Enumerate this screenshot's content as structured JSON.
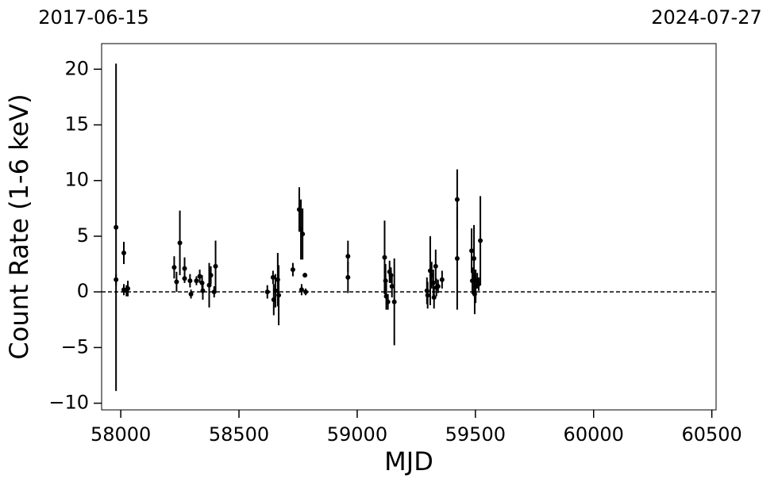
{
  "chart_data": {
    "type": "errorbar",
    "xlabel": "MJD",
    "ylabel": "Count Rate (1-6 keV)",
    "top_left_label": "2017-06-15",
    "top_right_label": "2024-07-27",
    "color": "#000000",
    "xlim": [
      57919,
      60518
    ],
    "ylim": [
      -10.6,
      22.3
    ],
    "xticks": [
      58000,
      58500,
      59000,
      59500,
      60000,
      60500
    ],
    "yticks": [
      {
        "value": -10,
        "label": "−10"
      },
      {
        "value": -5,
        "label": "−5"
      },
      0,
      5,
      10,
      15,
      20
    ],
    "reference_line": 0,
    "x": [
      57980,
      57980,
      58013,
      58013,
      58024,
      58030,
      58226,
      58236,
      58250,
      58270,
      58270,
      58293,
      58297,
      58320,
      58334,
      58344,
      58347,
      58374,
      58381,
      58395,
      58401,
      58620,
      58644,
      58647,
      58654,
      58664,
      58668,
      58728,
      58755,
      58762,
      58769,
      58765,
      58779,
      58782,
      58961,
      58961,
      59116,
      59120,
      59123,
      59130,
      59137,
      59143,
      59147,
      59157,
      59295,
      59298,
      59309,
      59315,
      59322,
      59325,
      59332,
      59335,
      59342,
      59359,
      59423,
      59423,
      59484,
      59487,
      59494,
      59497,
      59501,
      59508,
      59514,
      59521
    ],
    "values": [
      5.8,
      1.1,
      3.5,
      0.2,
      0.1,
      0.3,
      2.2,
      0.9,
      4.4,
      1.2,
      2.1,
      1.0,
      -0.2,
      1.0,
      1.4,
      0.8,
      0.1,
      0.6,
      1.5,
      0.0,
      2.3,
      0.0,
      1.3,
      -0.7,
      0.1,
      1.1,
      -0.3,
      2.0,
      7.4,
      5.6,
      5.2,
      0.2,
      1.5,
      0.0,
      3.2,
      1.3,
      3.1,
      1.0,
      -0.4,
      -0.9,
      1.8,
      1.5,
      0.5,
      -0.9,
      0.1,
      -0.3,
      1.9,
      1.5,
      0.8,
      -0.5,
      2.3,
      0.4,
      0.5,
      1.1,
      8.3,
      3.0,
      3.7,
      1.0,
      3.0,
      -0.2,
      0.5,
      1.0,
      0.7,
      4.6
    ],
    "errors": [
      14.7,
      0.5,
      1.0,
      0.5,
      0.5,
      0.7,
      1.0,
      0.9,
      2.9,
      0.4,
      1.0,
      0.6,
      0.4,
      0.4,
      0.6,
      0.7,
      0.8,
      2.0,
      0.8,
      0.5,
      2.3,
      0.6,
      0.6,
      1.4,
      1.5,
      2.4,
      2.7,
      0.6,
      2.0,
      2.7,
      2.3,
      0.5,
      0.2,
      0.3,
      1.4,
      1.4,
      3.3,
      1.5,
      1.2,
      0.7,
      1.0,
      0.7,
      1.0,
      3.9,
      1.2,
      1.2,
      3.1,
      1.2,
      1.2,
      1.0,
      1.5,
      0.8,
      0.6,
      0.8,
      2.7,
      4.6,
      2.0,
      1.2,
      3.0,
      1.8,
      1.5,
      0.7,
      0.6,
      4.0
    ]
  }
}
